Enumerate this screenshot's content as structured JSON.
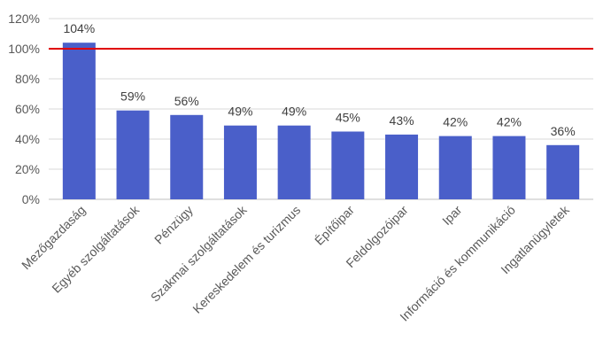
{
  "chart_data": {
    "type": "bar",
    "title": "",
    "xlabel": "",
    "ylabel": "",
    "categories": [
      "Mezőgazdaság",
      "Egyéb szolgáltatások",
      "Pénzügy",
      "Szakmai szolgáltatások",
      "Kereskedelem és turizmus",
      "Építőipar",
      "Feldolgozóipar",
      "Ipar",
      "Információ és kommunikáció",
      "Ingatlanügyletek"
    ],
    "values": [
      104,
      59,
      56,
      49,
      49,
      45,
      43,
      42,
      42,
      36
    ],
    "data_labels": [
      "104%",
      "59%",
      "56%",
      "49%",
      "49%",
      "45%",
      "43%",
      "42%",
      "42%",
      "36%"
    ],
    "ylim": [
      0,
      120
    ],
    "yticks": [
      0,
      20,
      40,
      60,
      80,
      100,
      120
    ],
    "ytick_labels": [
      "0%",
      "20%",
      "40%",
      "60%",
      "80%",
      "100%",
      "120%"
    ],
    "reference_line": {
      "value": 100,
      "color": "#e00000"
    },
    "bar_color": "#4a5fc9",
    "grid": true,
    "legend": "none"
  }
}
